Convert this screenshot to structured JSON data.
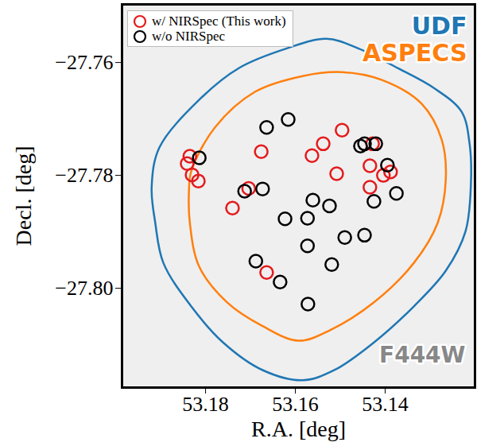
{
  "chart_data": {
    "type": "scatter",
    "xlabel": "R.A. [deg]",
    "ylabel": "Decl. [deg]",
    "xlim": [
      53.1986,
      53.12
    ],
    "ylim": [
      -27.8176,
      -27.7497
    ],
    "xticks": [
      53.18,
      53.16,
      53.14
    ],
    "yticks": [
      {
        "value": -27.76,
        "label": "−27.76"
      },
      {
        "value": -27.78,
        "label": "−27.78"
      },
      {
        "value": -27.8,
        "label": "−27.80"
      }
    ],
    "legend": "top-left",
    "series": [
      {
        "name": "w/ NIRSpec (This work)",
        "color": "#e41a1c",
        "marker": "circle",
        "x": [
          53.1835,
          53.1841,
          53.183,
          53.1816,
          53.174,
          53.1704,
          53.1676,
          53.1563,
          53.1538,
          53.1496,
          53.1508,
          53.1434,
          53.1434,
          53.1404,
          53.1388,
          53.1664,
          53.1428
        ],
        "y": [
          -27.7766,
          -27.7779,
          -27.7799,
          -27.781,
          -27.7858,
          -27.7823,
          -27.7758,
          -27.7765,
          -27.7744,
          -27.772,
          -27.7797,
          -27.7783,
          -27.7821,
          -27.78,
          -27.7794,
          -27.7972,
          -27.7744
        ]
      },
      {
        "name": "w/o NIRSpec",
        "color": "#000000",
        "marker": "circle",
        "x": [
          53.1814,
          53.1664,
          53.1616,
          53.1713,
          53.1673,
          53.1455,
          53.1446,
          53.1421,
          53.1395,
          53.1375,
          53.1425,
          53.1561,
          53.1623,
          53.1573,
          53.1524,
          53.149,
          53.1446,
          53.1573,
          53.1519,
          53.1688,
          53.1634,
          53.1572
        ],
        "y": [
          -27.7769,
          -27.7715,
          -27.7701,
          -27.7828,
          -27.7824,
          -27.7748,
          -27.7744,
          -27.7744,
          -27.7782,
          -27.7832,
          -27.7846,
          -27.7844,
          -27.7877,
          -27.7876,
          -27.7854,
          -27.791,
          -27.7906,
          -27.7925,
          -27.7958,
          -27.7952,
          -27.7989,
          -27.8028
        ]
      }
    ],
    "contours": [
      {
        "name": "UDF",
        "color": "#1f77b4",
        "type": "line",
        "x": [
          53.1903,
          53.1814,
          53.1726,
          53.1619,
          53.1531,
          53.146,
          53.1372,
          53.1292,
          53.123,
          53.1212,
          53.1209,
          53.1221,
          53.1265,
          53.1336,
          53.1425,
          53.1513,
          53.1584,
          53.1673,
          53.1761,
          53.1832,
          53.1894,
          53.1912,
          53.192
        ],
        "y": [
          -27.7751,
          -27.7666,
          -27.761,
          -27.7575,
          -27.7558,
          -27.7575,
          -27.761,
          -27.7645,
          -27.7687,
          -27.7744,
          -27.7814,
          -27.7899,
          -27.7969,
          -27.8032,
          -27.8096,
          -27.8145,
          -27.8163,
          -27.8145,
          -27.8096,
          -27.8032,
          -27.7955,
          -27.7884,
          -27.7821
        ]
      },
      {
        "name": "ASPECS",
        "color": "#ff7f0e",
        "type": "line",
        "x": [
          53.1832,
          53.1779,
          53.169,
          53.1584,
          53.1496,
          53.1407,
          53.1319,
          53.1274,
          53.1265,
          53.1283,
          53.1336,
          53.1425,
          53.1522,
          53.1593,
          53.1673,
          53.1752,
          53.1814,
          53.1835,
          53.1837
        ],
        "y": [
          -27.7793,
          -27.7715,
          -27.7652,
          -27.7624,
          -27.7617,
          -27.7631,
          -27.7673,
          -27.7737,
          -27.7807,
          -27.7884,
          -27.7955,
          -27.8025,
          -27.8074,
          -27.8093,
          -27.8067,
          -27.8025,
          -27.7962,
          -27.7884,
          -27.7828
        ]
      }
    ],
    "annotations": [
      {
        "text": "F444W",
        "color": "#888888"
      }
    ]
  }
}
